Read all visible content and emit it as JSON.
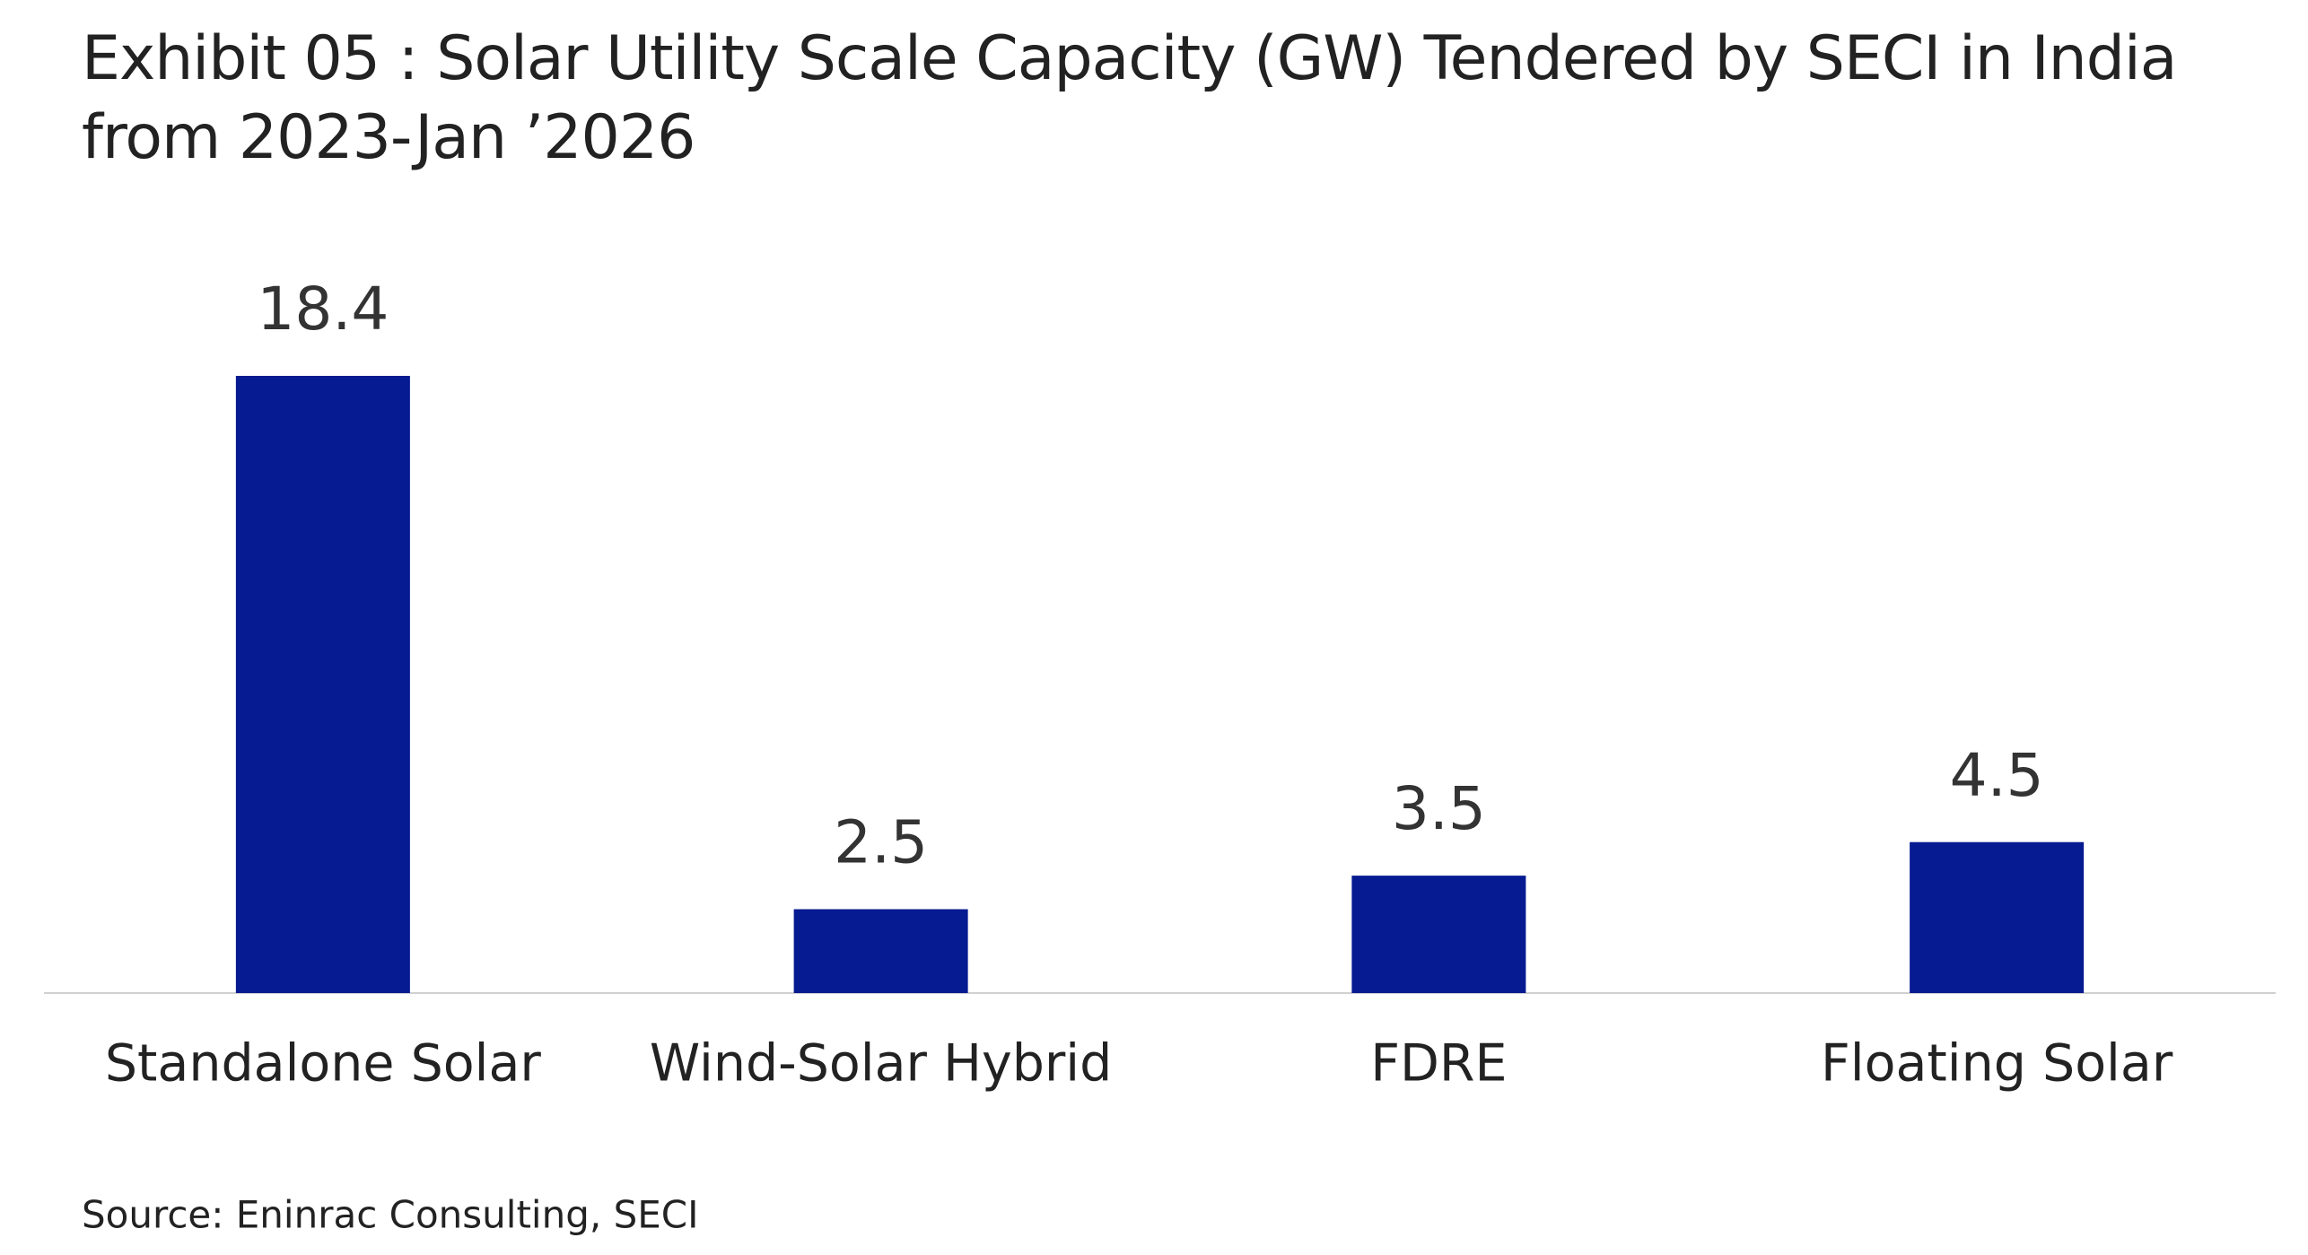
{
  "chart_data": {
    "type": "bar",
    "title": "Exhibit 05 : Solar Utility Scale Capacity (GW) Tendered by SECI in India from 2023-Jan ’2026",
    "categories": [
      "Standalone Solar",
      "Wind-Solar Hybrid",
      "FDRE",
      "Floating Solar"
    ],
    "values": [
      18.4,
      2.5,
      3.5,
      4.5
    ],
    "color": "#061a91",
    "source": "Source: Eninrac Consulting, SECI"
  }
}
